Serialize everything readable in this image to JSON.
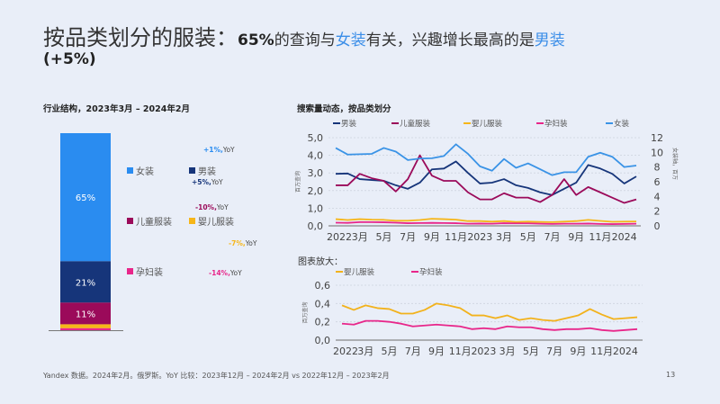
{
  "title": {
    "main": "按品类划分的服装：",
    "bold": "65%",
    "t1": "的查询与",
    "women": "女装",
    "t2": "有关，兴趣增长最高的是",
    "men": "男装",
    "line2": "(+5%)"
  },
  "left": {
    "heading": "行业结构，2023年3月 – 2024年2月",
    "legend": [
      {
        "label": "女装",
        "yoy": "+1%,",
        "yoy_suffix": "YoY",
        "color": "#2a8cf0"
      },
      {
        "label": "男装",
        "yoy": "+5%,",
        "yoy_suffix": "YoY",
        "color": "#16357a"
      },
      {
        "label": "儿童服装",
        "yoy": "-10%,",
        "yoy_suffix": "YoY",
        "color": "#9b0a5a"
      },
      {
        "label": "婴儿服装",
        "yoy": "-7%,",
        "yoy_suffix": "YoY",
        "color": "#f6b619"
      },
      {
        "label": "孕妇装",
        "yoy": "-14%,",
        "yoy_suffix": "YoY",
        "color": "#e8268a"
      }
    ]
  },
  "chart_data": [
    {
      "type": "bar",
      "stacked": true,
      "title": "行业结构，2023年3月 – 2024年2月",
      "series": [
        {
          "name": "女装",
          "value": 65,
          "label": "65%"
        },
        {
          "name": "男装",
          "value": 21,
          "label": "21%"
        },
        {
          "name": "儿童服装",
          "value": 11,
          "label": "11%"
        },
        {
          "name": "婴儿服装",
          "value": 2
        },
        {
          "name": "孕妇装",
          "value": 1
        }
      ]
    },
    {
      "type": "line",
      "title": "搜索量动态，按品类划分",
      "ylabel": "百万查询",
      "y2label": "女装轴，百万",
      "ylim": [
        0,
        5
      ],
      "y2lim": [
        0,
        12
      ],
      "yticks": [
        "0,0",
        "1,0",
        "2,0",
        "3,0",
        "4,0",
        "5,0"
      ],
      "y2ticks": [
        "0",
        "2",
        "4",
        "6",
        "8",
        "10",
        "12"
      ],
      "xticks": [
        "2022",
        "3月",
        "5月",
        "7月",
        "9月",
        "11月",
        "2023",
        "3月",
        "5月",
        "7月",
        "9月",
        "11月",
        "2024"
      ],
      "x": [
        "2022-01",
        "2022-02",
        "2022-03",
        "2022-04",
        "2022-05",
        "2022-06",
        "2022-07",
        "2022-08",
        "2022-09",
        "2022-10",
        "2022-11",
        "2022-12",
        "2023-01",
        "2023-02",
        "2023-03",
        "2023-04",
        "2023-05",
        "2023-06",
        "2023-07",
        "2023-08",
        "2023-09",
        "2023-10",
        "2023-11",
        "2023-12",
        "2024-01",
        "2024-02"
      ],
      "series": [
        {
          "name": "男装",
          "color": "#16357a",
          "axis": "left",
          "values": [
            2.95,
            2.97,
            2.65,
            2.6,
            2.55,
            2.3,
            2.1,
            2.45,
            3.2,
            3.25,
            3.65,
            3.0,
            2.4,
            2.45,
            2.65,
            2.3,
            2.15,
            1.9,
            1.75,
            2.1,
            2.45,
            3.45,
            3.25,
            2.95,
            2.4,
            2.8
          ]
        },
        {
          "name": "儿童服装",
          "color": "#9b0a5a",
          "axis": "left",
          "values": [
            2.3,
            2.3,
            2.95,
            2.7,
            2.55,
            1.95,
            2.65,
            4.0,
            2.85,
            2.55,
            2.55,
            1.9,
            1.5,
            1.5,
            1.85,
            1.6,
            1.6,
            1.35,
            1.75,
            2.65,
            1.75,
            2.2,
            1.9,
            1.6,
            1.3,
            1.5
          ]
        },
        {
          "name": "婴儿服装",
          "color": "#f6b619",
          "axis": "left",
          "values": [
            0.38,
            0.33,
            0.38,
            0.35,
            0.34,
            0.29,
            0.29,
            0.33,
            0.4,
            0.38,
            0.35,
            0.27,
            0.27,
            0.24,
            0.27,
            0.22,
            0.24,
            0.22,
            0.21,
            0.24,
            0.27,
            0.34,
            0.28,
            0.23,
            0.24,
            0.25
          ]
        },
        {
          "name": "孕妇装",
          "color": "#e8268a",
          "axis": "left",
          "values": [
            0.18,
            0.17,
            0.21,
            0.21,
            0.2,
            0.18,
            0.15,
            0.16,
            0.17,
            0.16,
            0.15,
            0.12,
            0.13,
            0.12,
            0.15,
            0.14,
            0.14,
            0.12,
            0.11,
            0.12,
            0.12,
            0.13,
            0.11,
            0.1,
            0.11,
            0.12
          ]
        },
        {
          "name": "女装",
          "color": "#3a93e6",
          "axis": "right",
          "values": [
            10.6,
            9.7,
            9.75,
            9.8,
            10.6,
            10.1,
            8.95,
            9.15,
            9.2,
            9.5,
            11.1,
            9.8,
            8.1,
            7.5,
            9.1,
            7.9,
            8.5,
            7.7,
            6.9,
            7.3,
            7.3,
            9.4,
            9.95,
            9.4,
            8.0,
            8.2
          ]
        }
      ]
    },
    {
      "type": "line",
      "title": "图表放大：",
      "ylabel": "百万查询",
      "ylim": [
        0,
        0.6
      ],
      "yticks": [
        "0,0",
        "0,2",
        "0,4",
        "0,6"
      ],
      "xticks": [
        "2022",
        "3月",
        "5月",
        "7月",
        "9月",
        "11月",
        "2023",
        "3月",
        "5月",
        "7月",
        "9月",
        "11月",
        "2024"
      ],
      "series": [
        {
          "name": "婴儿服装",
          "color": "#f2b21c",
          "values": [
            0.38,
            0.33,
            0.38,
            0.35,
            0.34,
            0.29,
            0.29,
            0.33,
            0.4,
            0.38,
            0.35,
            0.27,
            0.27,
            0.24,
            0.27,
            0.22,
            0.24,
            0.22,
            0.21,
            0.24,
            0.27,
            0.34,
            0.28,
            0.23,
            0.24,
            0.25
          ]
        },
        {
          "name": "孕妇装",
          "color": "#e8268a",
          "values": [
            0.18,
            0.17,
            0.21,
            0.21,
            0.2,
            0.18,
            0.15,
            0.16,
            0.17,
            0.16,
            0.15,
            0.12,
            0.13,
            0.12,
            0.15,
            0.14,
            0.14,
            0.12,
            0.11,
            0.12,
            0.12,
            0.13,
            0.11,
            0.1,
            0.11,
            0.12
          ]
        }
      ]
    }
  ],
  "footer": "Yandex 数据。2024年2月。俄罗斯。YoY 比较：2023年12月 – 2024年2月 vs 2022年12月 – 2023年2月",
  "page_number": "13"
}
